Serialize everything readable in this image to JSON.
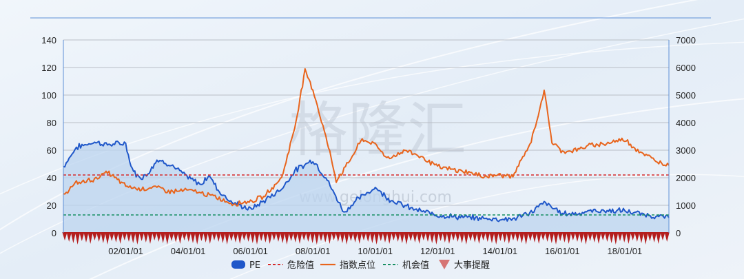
{
  "colors": {
    "pe": "#1f57c9",
    "pe_fill": "#bcd4ef",
    "index": "#e8641c",
    "danger": "#d62a2a",
    "chance": "#168f62",
    "events": "#b41e1e",
    "grid": "#b9bec6",
    "axis": "#5d8fd6"
  },
  "watermark": {
    "cn": "格隆汇",
    "url": "www.gelonghui.com"
  },
  "legend": [
    {
      "label": "PE",
      "kind": "blob",
      "color": "#1f57c9"
    },
    {
      "label": "危险值",
      "kind": "dash",
      "color": "#d62a2a"
    },
    {
      "label": "指数点位",
      "kind": "line",
      "color": "#e8641c"
    },
    {
      "label": "机会值",
      "kind": "dash",
      "color": "#168f62"
    },
    {
      "label": "大事提醒",
      "kind": "triangle",
      "color": "#d67474"
    }
  ],
  "chart_data": {
    "type": "line",
    "x_start": "2000-01-01",
    "x_end": "2019-06-01",
    "x_ticks": [
      "02/01/01",
      "04/01/01",
      "06/01/01",
      "08/01/01",
      "10/01/01",
      "12/01/01",
      "14/01/01",
      "16/01/01",
      "18/01/01"
    ],
    "y_left": {
      "min": 0,
      "max": 140,
      "ticks": [
        0,
        20,
        40,
        60,
        80,
        100,
        120,
        140
      ]
    },
    "y_right": {
      "min": 0,
      "max": 7000,
      "ticks": [
        0,
        1000,
        2000,
        3000,
        4000,
        5000,
        6000,
        7000
      ]
    },
    "grid": true,
    "legend_position": "bottom",
    "series": [
      {
        "name": "PE",
        "axis": "left",
        "area": true,
        "points": [
          [
            "2000-01-01",
            48
          ],
          [
            "2000-06-01",
            62
          ],
          [
            "2001-01-01",
            66
          ],
          [
            "2001-06-01",
            64
          ],
          [
            "2002-01-01",
            65
          ],
          [
            "2002-03-01",
            48
          ],
          [
            "2002-06-01",
            40
          ],
          [
            "2002-09-01",
            42
          ],
          [
            "2003-01-01",
            53
          ],
          [
            "2003-06-01",
            50
          ],
          [
            "2004-01-01",
            40
          ],
          [
            "2004-06-01",
            35
          ],
          [
            "2004-09-01",
            42
          ],
          [
            "2005-01-01",
            30
          ],
          [
            "2005-06-01",
            22
          ],
          [
            "2006-01-01",
            17
          ],
          [
            "2006-06-01",
            23
          ],
          [
            "2007-01-01",
            32
          ],
          [
            "2007-06-01",
            45
          ],
          [
            "2008-01-01",
            53
          ],
          [
            "2008-06-01",
            40
          ],
          [
            "2009-01-01",
            15
          ],
          [
            "2009-06-01",
            24
          ],
          [
            "2010-01-01",
            33
          ],
          [
            "2010-06-01",
            25
          ],
          [
            "2011-01-01",
            19
          ],
          [
            "2011-06-01",
            16
          ],
          [
            "2012-01-01",
            13
          ],
          [
            "2012-06-01",
            12
          ],
          [
            "2013-01-01",
            11
          ],
          [
            "2014-01-01",
            10
          ],
          [
            "2014-06-01",
            10
          ],
          [
            "2015-01-01",
            15
          ],
          [
            "2015-06-01",
            22
          ],
          [
            "2016-01-01",
            14
          ],
          [
            "2016-06-01",
            14
          ],
          [
            "2017-01-01",
            16
          ],
          [
            "2018-01-01",
            16
          ],
          [
            "2018-06-01",
            14
          ],
          [
            "2019-01-01",
            12
          ],
          [
            "2019-06-01",
            11
          ]
        ]
      },
      {
        "name": "危险值",
        "axis": "left",
        "style": "dashed",
        "points": [
          [
            "2000-01-01",
            42
          ],
          [
            "2019-06-01",
            42
          ]
        ]
      },
      {
        "name": "指数点位",
        "axis": "right",
        "points": [
          [
            "2000-01-01",
            1400
          ],
          [
            "2000-06-01",
            1800
          ],
          [
            "2001-01-01",
            1950
          ],
          [
            "2001-06-01",
            2200
          ],
          [
            "2002-01-01",
            1700
          ],
          [
            "2002-06-01",
            1600
          ],
          [
            "2003-01-01",
            1650
          ],
          [
            "2003-06-01",
            1500
          ],
          [
            "2004-01-01",
            1550
          ],
          [
            "2004-06-01",
            1450
          ],
          [
            "2005-01-01",
            1250
          ],
          [
            "2005-06-01",
            1050
          ],
          [
            "2006-01-01",
            1150
          ],
          [
            "2006-06-01",
            1300
          ],
          [
            "2007-01-01",
            2000
          ],
          [
            "2007-06-01",
            3800
          ],
          [
            "2007-10-01",
            5900
          ],
          [
            "2008-01-01",
            5200
          ],
          [
            "2008-06-01",
            3500
          ],
          [
            "2008-10-01",
            1900
          ],
          [
            "2009-01-01",
            2300
          ],
          [
            "2009-08-01",
            3400
          ],
          [
            "2010-01-01",
            3200
          ],
          [
            "2010-06-01",
            2700
          ],
          [
            "2011-01-01",
            3000
          ],
          [
            "2011-06-01",
            2800
          ],
          [
            "2012-01-01",
            2400
          ],
          [
            "2012-06-01",
            2300
          ],
          [
            "2013-01-01",
            2200
          ],
          [
            "2013-06-01",
            2050
          ],
          [
            "2014-01-01",
            2100
          ],
          [
            "2014-06-01",
            2050
          ],
          [
            "2015-01-01",
            3300
          ],
          [
            "2015-06-01",
            5150
          ],
          [
            "2015-09-01",
            3300
          ],
          [
            "2016-01-01",
            2950
          ],
          [
            "2016-06-01",
            3000
          ],
          [
            "2017-01-01",
            3200
          ],
          [
            "2017-06-01",
            3250
          ],
          [
            "2018-01-01",
            3400
          ],
          [
            "2018-06-01",
            3000
          ],
          [
            "2019-01-01",
            2600
          ],
          [
            "2019-06-01",
            2450
          ]
        ]
      },
      {
        "name": "机会值",
        "axis": "left",
        "style": "dashed",
        "points": [
          [
            "2000-01-01",
            13
          ],
          [
            "2019-06-01",
            13
          ]
        ]
      },
      {
        "name": "大事提醒",
        "kind": "event-markers",
        "at_y_left": 0
      }
    ]
  }
}
